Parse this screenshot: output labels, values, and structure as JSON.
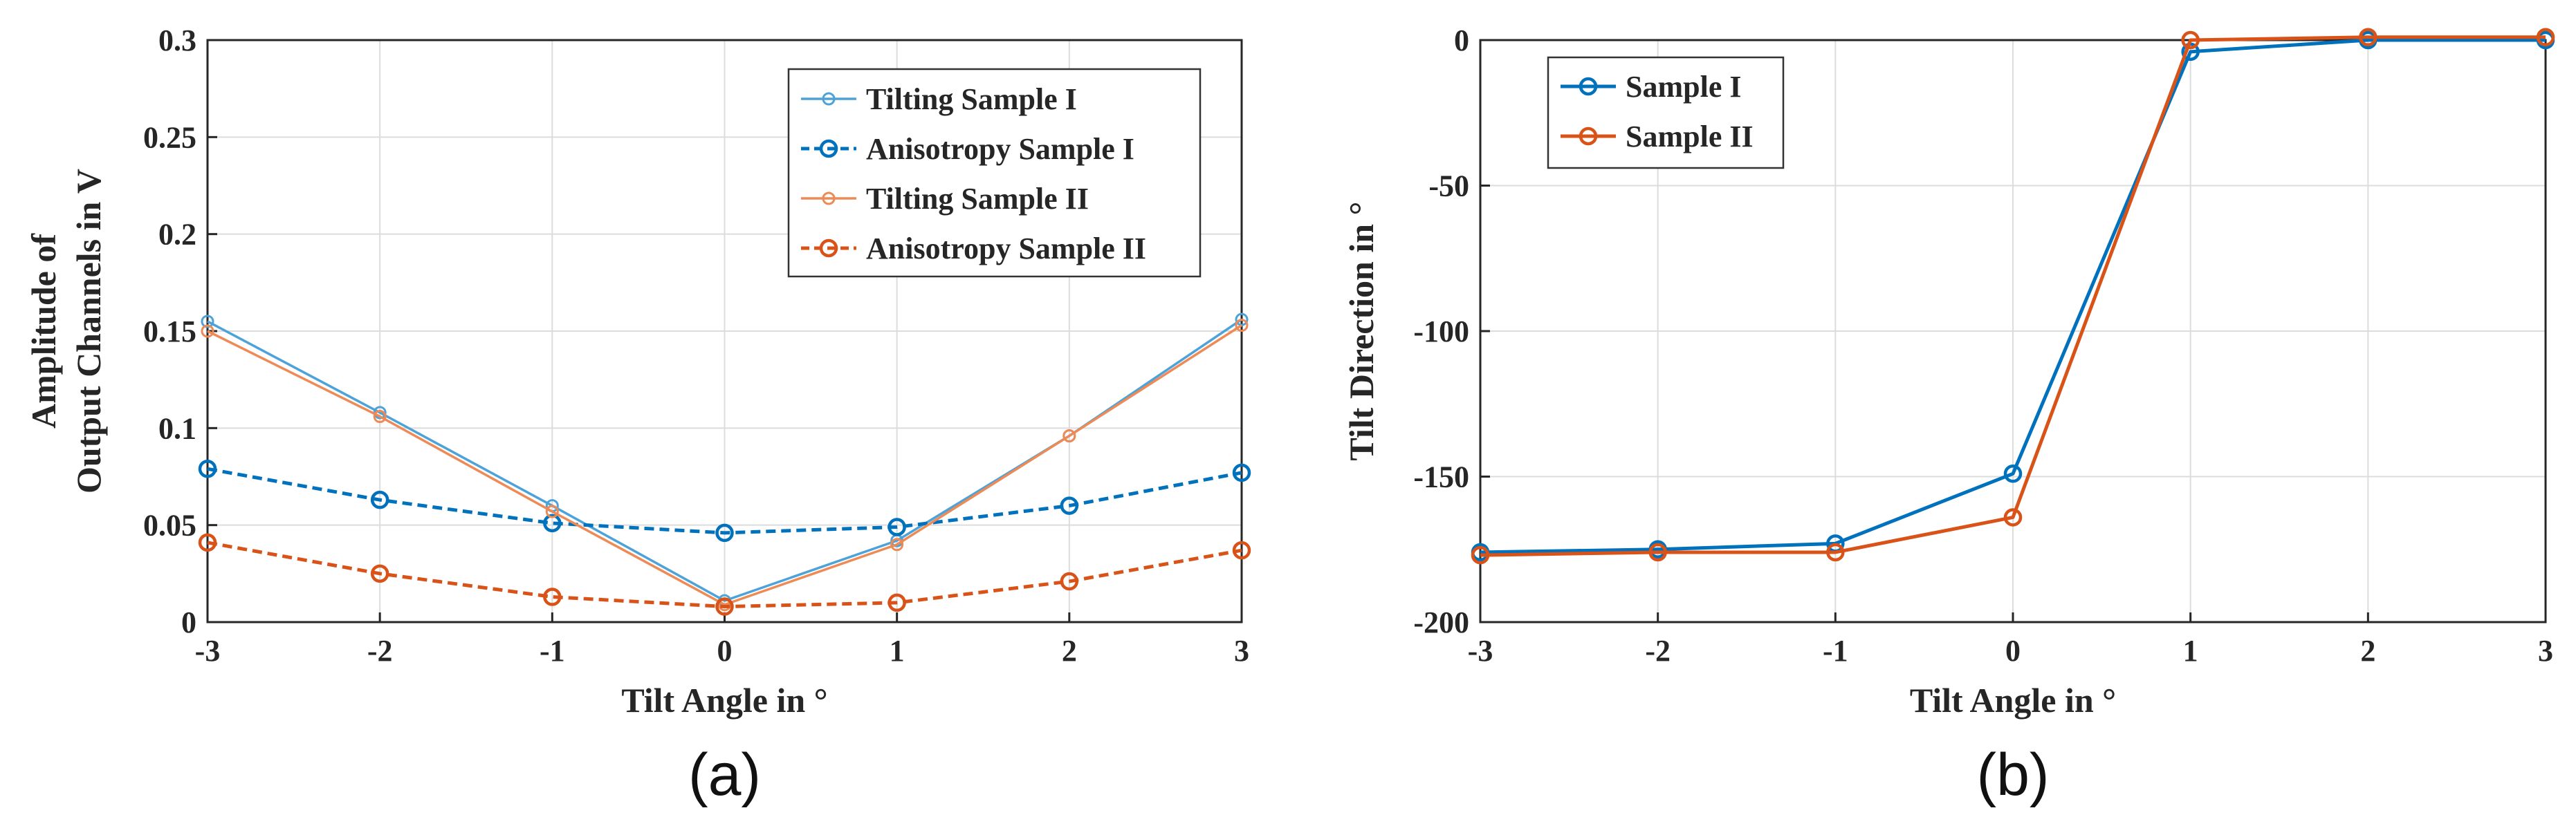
{
  "colors": {
    "blue": "#0072BD",
    "blue_light": "#4DA3D9",
    "orange": "#D95319",
    "orange_light": "#EE8A55",
    "grid": "#DCDCDC",
    "axis": "#262626"
  },
  "chart_data": [
    {
      "type": "line",
      "panel_label": "(a)",
      "xlabel": "Tilt Angle in °",
      "ylabel_line1": "Amplitude of",
      "ylabel_line2": "Output Channels in V",
      "xlim": [
        -3,
        3
      ],
      "ylim": [
        0,
        0.3
      ],
      "grid": true,
      "legend_position": "top-right",
      "x_ticks": [
        "-3",
        "-2",
        "-1",
        "0",
        "1",
        "2",
        "3"
      ],
      "y_ticks": [
        "0",
        "0.05",
        "0.1",
        "0.15",
        "0.2",
        "0.25",
        "0.3"
      ],
      "x": [
        -3,
        -2,
        -1,
        0,
        1,
        2,
        3
      ],
      "series": [
        {
          "name": "Tilting Sample I",
          "color": "#4DA3D9",
          "style": "solid",
          "marker": "small-circle",
          "values": [
            0.155,
            0.108,
            0.06,
            0.011,
            0.042,
            0.096,
            0.156
          ]
        },
        {
          "name": "Anisotropy Sample I",
          "color": "#0072BD",
          "style": "dashed",
          "marker": "circle",
          "values": [
            0.079,
            0.063,
            0.051,
            0.046,
            0.049,
            0.06,
            0.077
          ]
        },
        {
          "name": "Tilting Sample II",
          "color": "#EE8A55",
          "style": "solid",
          "marker": "small-circle",
          "values": [
            0.15,
            0.106,
            0.057,
            0.009,
            0.04,
            0.096,
            0.153
          ]
        },
        {
          "name": "Anisotropy Sample II",
          "color": "#D95319",
          "style": "dashed",
          "marker": "circle",
          "values": [
            0.041,
            0.025,
            0.013,
            0.008,
            0.01,
            0.021,
            0.037
          ]
        }
      ]
    },
    {
      "type": "line",
      "panel_label": "(b)",
      "xlabel": "Tilt Angle in °",
      "ylabel": "Tilt Direction in °",
      "xlim": [
        -3,
        3
      ],
      "ylim": [
        -200,
        0
      ],
      "grid": true,
      "legend_position": "top-left",
      "x_ticks": [
        "-3",
        "-2",
        "-1",
        "0",
        "1",
        "2",
        "3"
      ],
      "y_ticks": [
        "-200",
        "-150",
        "-100",
        "-50",
        "0"
      ],
      "x": [
        -3,
        -2,
        -1,
        0,
        1,
        2,
        3
      ],
      "series": [
        {
          "name": "Sample I",
          "color": "#0072BD",
          "style": "solid",
          "marker": "circle",
          "values": [
            -176,
            -175,
            -173,
            -149,
            -4,
            0,
            0
          ]
        },
        {
          "name": "Sample II",
          "color": "#D95319",
          "style": "solid",
          "marker": "circle",
          "values": [
            -177,
            -176,
            -176,
            -164,
            0,
            1,
            1
          ]
        }
      ]
    }
  ]
}
